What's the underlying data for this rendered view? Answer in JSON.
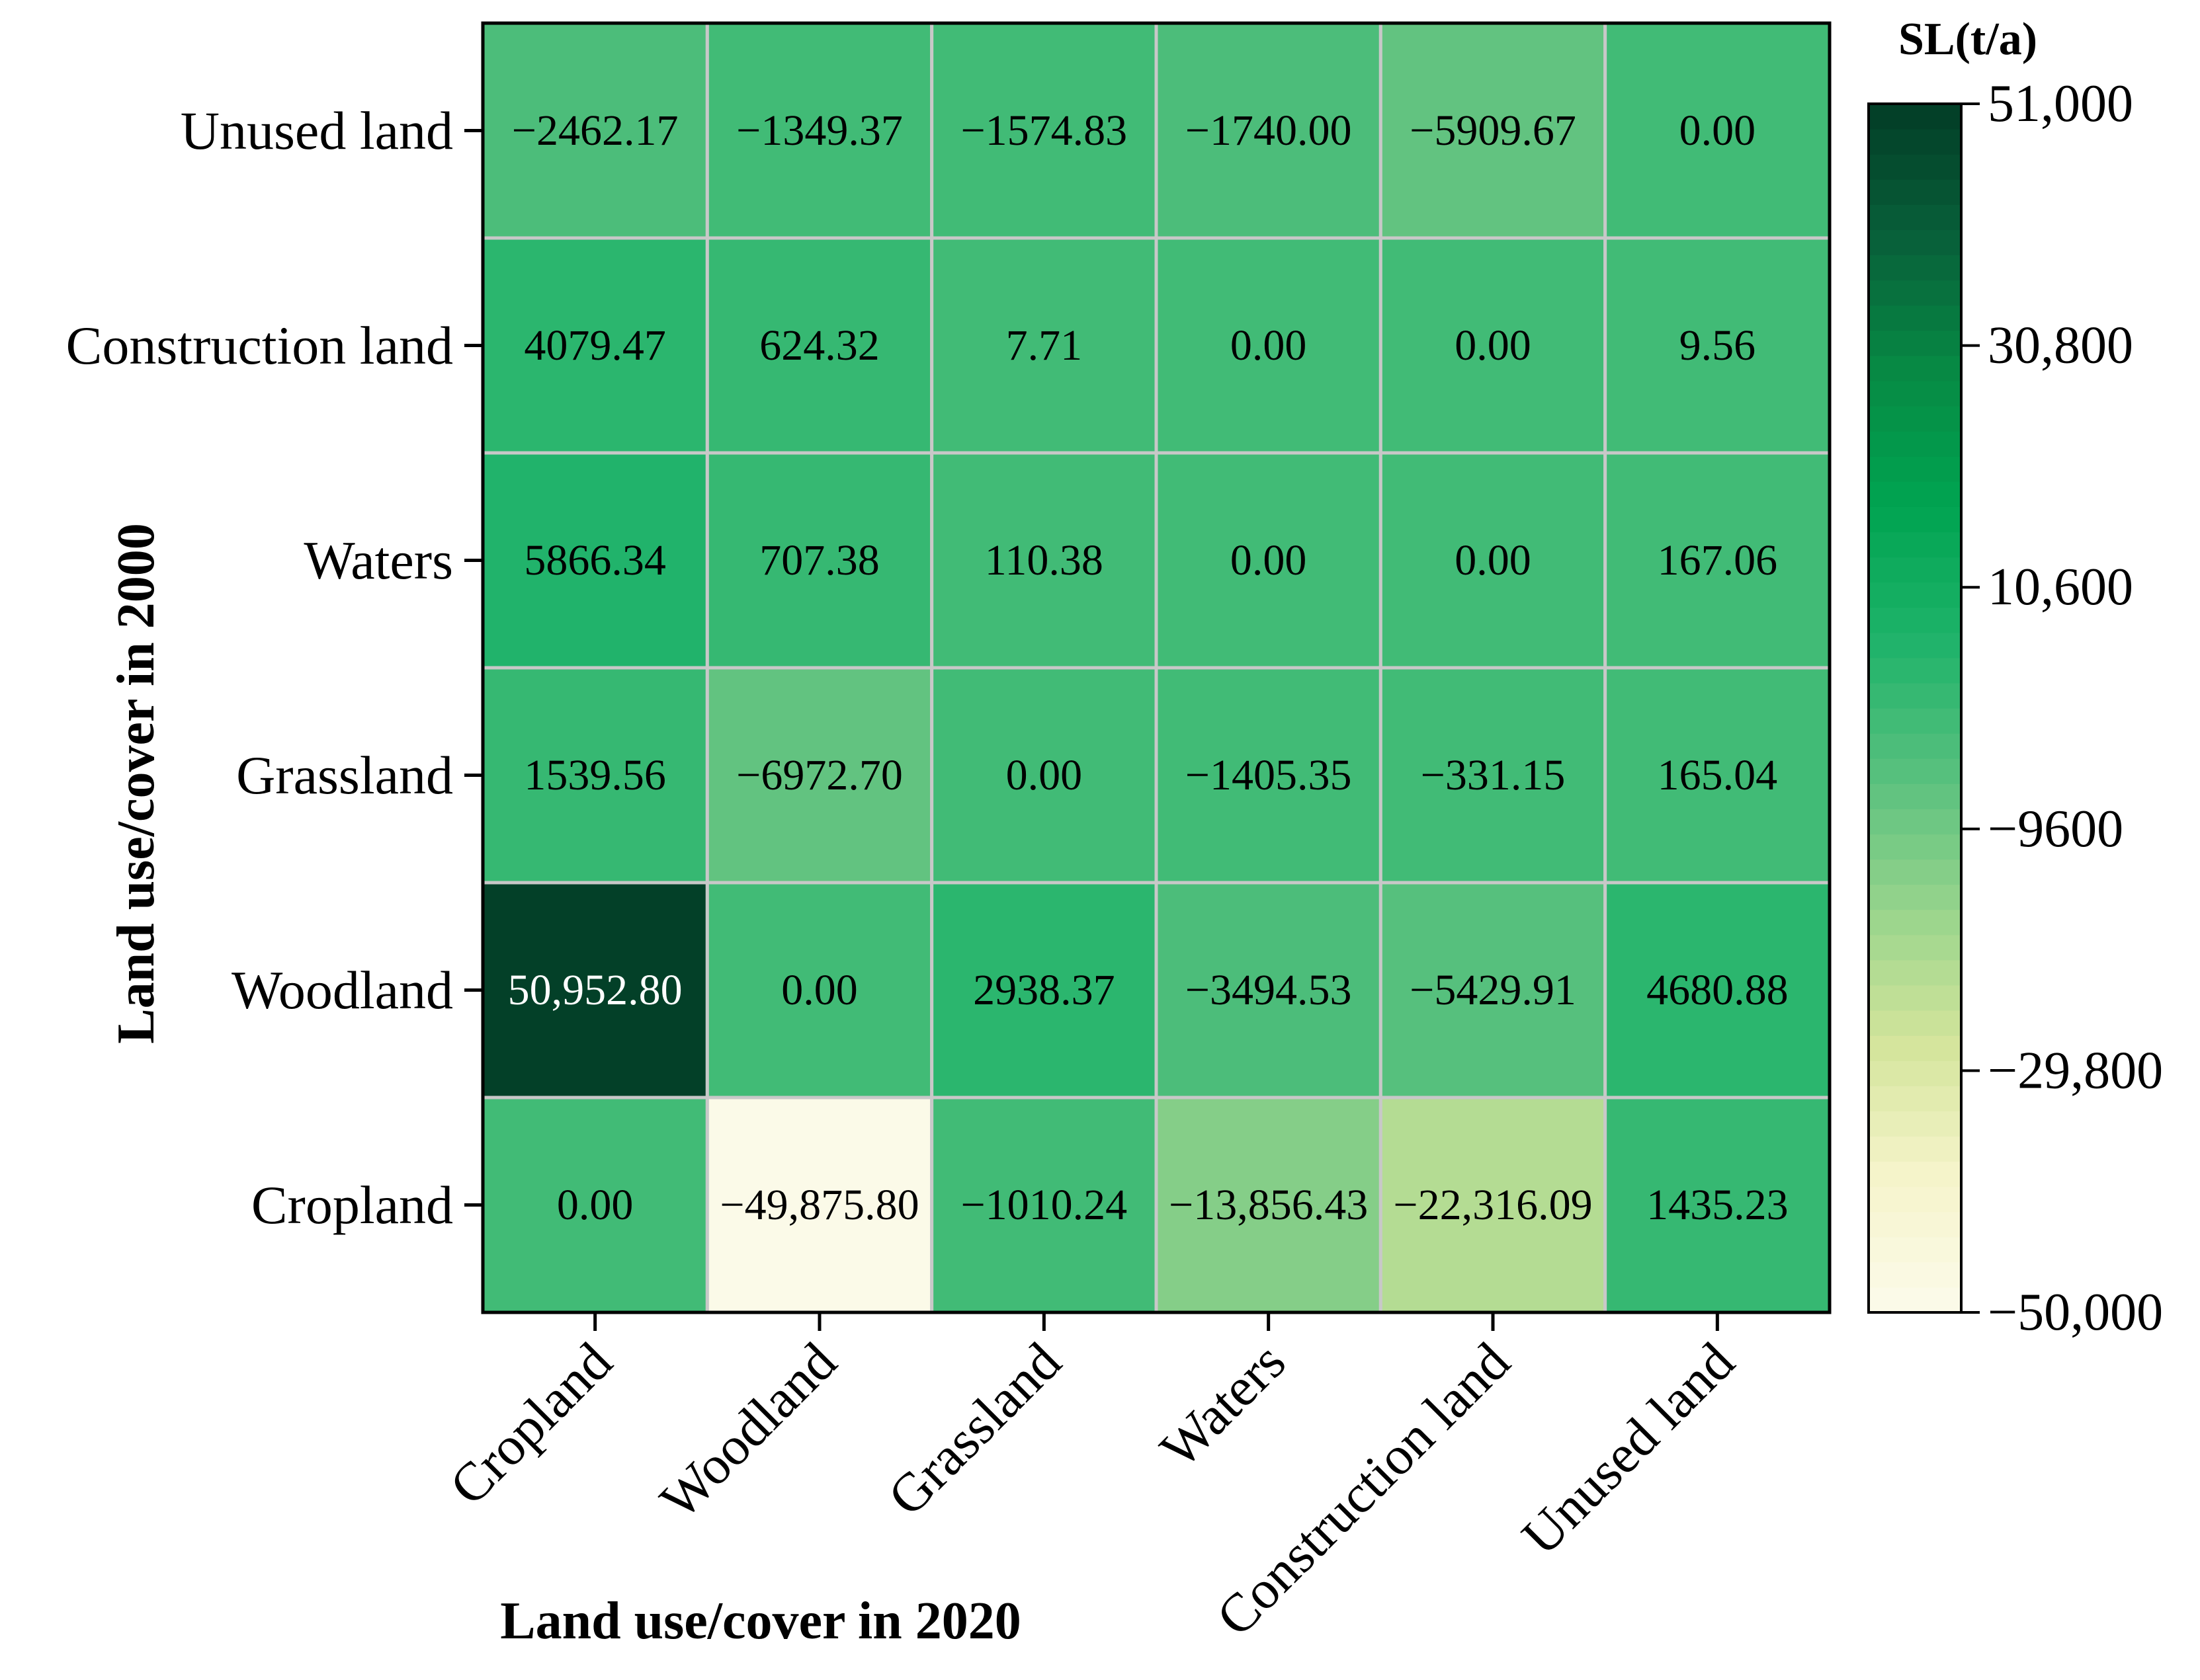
{
  "chart_data": {
    "type": "heatmap",
    "xlabel": "Land use/cover in 2020",
    "ylabel": "Land use/cover in 2000",
    "x_categories": [
      "Cropland",
      "Woodland",
      "Grassland",
      "Waters",
      "Construction land",
      "Unused land"
    ],
    "y_categories_top_to_bottom": [
      "Unused land",
      "Construction land",
      "Waters",
      "Grassland",
      "Woodland",
      "Cropland"
    ],
    "rows": [
      {
        "from": "Unused land",
        "values": [
          -2462.17,
          -1349.37,
          -1574.83,
          -1740.0,
          -5909.67,
          0.0
        ],
        "labels": [
          "−2462.17",
          "−1349.37",
          "−1574.83",
          "−1740.00",
          "−5909.67",
          "0.00"
        ]
      },
      {
        "from": "Construction land",
        "values": [
          4079.47,
          624.32,
          7.71,
          0.0,
          0.0,
          9.56
        ],
        "labels": [
          "4079.47",
          "624.32",
          "7.71",
          "0.00",
          "0.00",
          "9.56"
        ]
      },
      {
        "from": "Waters",
        "values": [
          5866.34,
          707.38,
          110.38,
          0.0,
          0.0,
          167.06
        ],
        "labels": [
          "5866.34",
          "707.38",
          "110.38",
          "0.00",
          "0.00",
          "167.06"
        ]
      },
      {
        "from": "Grassland",
        "values": [
          1539.56,
          -6972.7,
          0.0,
          -1405.35,
          -331.15,
          165.04
        ],
        "labels": [
          "1539.56",
          "−6972.70",
          "0.00",
          "−1405.35",
          "−331.15",
          "165.04"
        ]
      },
      {
        "from": "Woodland",
        "values": [
          50952.8,
          0.0,
          2938.37,
          -3494.53,
          -5429.91,
          4680.88
        ],
        "labels": [
          "50,952.80",
          "0.00",
          "2938.37",
          "−3494.53",
          "−5429.91",
          "4680.88"
        ]
      },
      {
        "from": "Cropland",
        "values": [
          0.0,
          -49875.8,
          -1010.24,
          -13856.43,
          -22316.09,
          1435.23
        ],
        "labels": [
          "0.00",
          "−49,875.80",
          "−1010.24",
          "−13,856.43",
          "−22,316.09",
          "1435.23"
        ]
      }
    ],
    "colorbar": {
      "title": "SL(t/a)",
      "range": [
        -50000,
        51000
      ],
      "ticks": [
        51000,
        30800,
        10600,
        -9600,
        -29800,
        -50000
      ],
      "tick_labels": [
        "51,000",
        "30,800",
        "10,600",
        "−9600",
        "−29,800",
        "−50,000"
      ],
      "colors_low_to_high": [
        "#fcfbeb",
        "#f6f4cb",
        "#d4e49b",
        "#97d48c",
        "#58c07e",
        "#1fb36a",
        "#00a451",
        "#078a44",
        "#08603a",
        "#033d26"
      ]
    }
  }
}
